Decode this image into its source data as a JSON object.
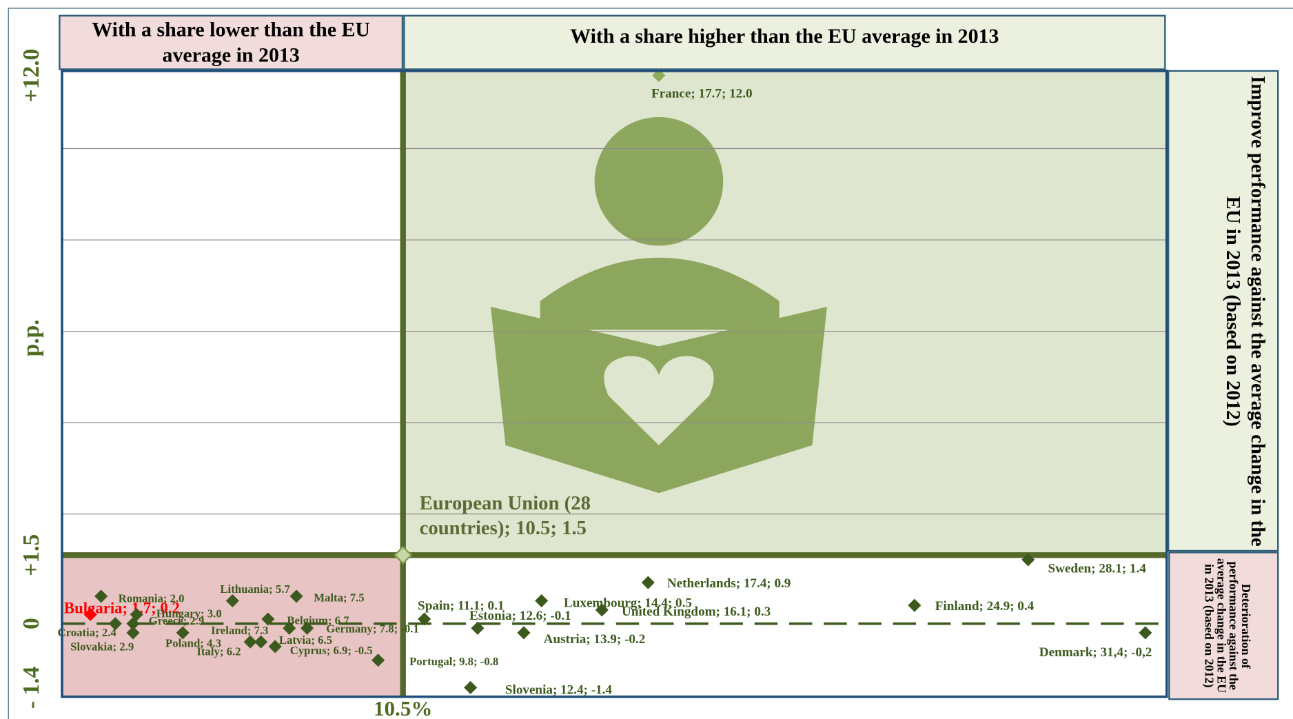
{
  "chart_data": {
    "type": "scatter",
    "headers": {
      "lower": "With a share lower  than the EU average in 2013",
      "higher": "With a share higher than the EU average in 2013",
      "improve": "Improve performance against the average change in the EU in 2013 (based on 2012)",
      "deteriorate": "Deterioration of performance against the average change in the EU in 2013 (based on 2012)"
    },
    "ylabel": "p.p.",
    "xlim": [
      0.9,
      32
    ],
    "ylim": [
      -1.6,
      12.1
    ],
    "xticks": [
      {
        "value": 10.5,
        "label": "10.5%"
      }
    ],
    "yticks": [
      {
        "value": 12,
        "label": "+12.0"
      },
      {
        "value": 1.5,
        "label": "+1.5"
      },
      0,
      {
        "value": -1.4,
        "label": "- 1.4"
      }
    ],
    "ygrid": [
      2.4,
      4.4,
      6.4,
      8.4,
      10.4
    ],
    "x": [
      17.7,
      28.1,
      17.4,
      24.9,
      14.4,
      16.1,
      11.1,
      12.6,
      13.9,
      9.8,
      12.4,
      31.4,
      10.5,
      2.0,
      5.7,
      7.5,
      1.7,
      3.0,
      2.9,
      2.4,
      2.9,
      4.3,
      6.2,
      7.3,
      6.5,
      6.9,
      6.7,
      7.8
    ],
    "y": [
      12.0,
      1.4,
      0.9,
      0.4,
      0.5,
      0.3,
      0.1,
      -0.1,
      -0.2,
      -0.8,
      -1.4,
      -0.2,
      1.5,
      0.6,
      0.5,
      0.6,
      0.2,
      0.2,
      0.0,
      0.0,
      -0.2,
      -0.2,
      -0.4,
      -0.1,
      -0.4,
      -0.5,
      0.1,
      -0.1
    ],
    "labels": [
      "France; 17.7; 12.0",
      "Sweden; 28.1; 1.4",
      "Netherlands; 17.4; 0.9",
      "Finland; 24.9; 0.4",
      "Luxembourg; 14.4; 0.5",
      "United Kingdom; 16.1; 0.3",
      "Spain; 11.1; 0.1",
      "Estonia; 12.6; -0.1",
      "Austria; 13.9; -0.2",
      "Portugal; 9.8; -0.8",
      "Slovenia; 12.4; -1.4",
      "Denmark; 31,4; -0,2",
      "European Union (28 countries); 10.5; 1.5",
      "Romania; 2.0",
      "Lithuania; 5.7",
      "Malta; 7.5",
      "Bulgaria; 1.7; 0.2",
      "Hungary; 3.0",
      "Greece; 2.9",
      "Croatia; 2.4",
      "Slovakia; 2.9",
      "Poland; 4.3",
      "Italy; 6.2",
      "Ireland; 7.3",
      "Latvia; 6.5",
      "Cyprus; 6.9; -0.5",
      "Belgium; 6.7",
      "Germany; 7.8; -0.1"
    ],
    "colors": [
      "#8fac5a",
      "#3d5a1e",
      "#3d5a1e",
      "#3d5a1e",
      "#3d5a1e",
      "#3d5a1e",
      "#3d5a1e",
      "#3d5a1e",
      "#3d5a1e",
      "#3d5a1e",
      "#3d5a1e",
      "#3d5a1e",
      "#c9d6a8",
      "#3d5a1e",
      "#3d5a1e",
      "#3d5a1e",
      "#ff0000",
      "#3d5a1e",
      "#3d5a1e",
      "#3d5a1e",
      "#3d5a1e",
      "#3d5a1e",
      "#3d5a1e",
      "#3d5a1e",
      "#3d5a1e",
      "#3d5a1e",
      "#3d5a1e",
      "#3d5a1e"
    ],
    "grid": true
  }
}
